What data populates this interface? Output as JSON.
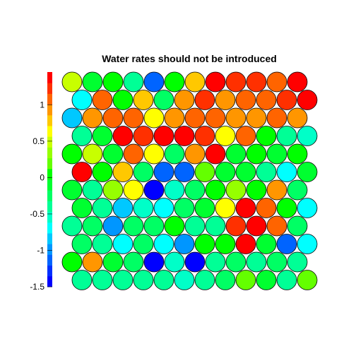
{
  "chart_data": {
    "type": "heatmap",
    "layout": "hexagonal-circles",
    "title": "Water rates should not be introduced",
    "colorbar": {
      "ticks": [
        1,
        0.5,
        0,
        -0.5,
        -1,
        -1.5
      ],
      "tick_labels": [
        "1",
        "0.5",
        "0",
        "-0.5",
        "-1",
        "-1.5"
      ],
      "range": [
        -1.5,
        1.45
      ],
      "levels": 20,
      "palette": [
        "#0000ff",
        "#0030ff",
        "#0064ff",
        "#0096ff",
        "#00c8ff",
        "#00ffff",
        "#00ffc8",
        "#00ff96",
        "#00ff64",
        "#00ff30",
        "#00ff00",
        "#64ff00",
        "#96ff00",
        "#c8ff00",
        "#ffff00",
        "#ffc800",
        "#ff9600",
        "#ff6400",
        "#ff3000",
        "#ff0000"
      ]
    },
    "grid": {
      "columns": 12,
      "rows_top_to_bottom": [
        [
          0.45,
          -0.05,
          0.0,
          -0.45,
          -1.1,
          0.05,
          0.75,
          1.35,
          1.3,
          1.2,
          1.05,
          1.35
        ],
        [
          -0.75,
          1.05,
          0.1,
          0.75,
          -0.25,
          0.95,
          1.25,
          1.0,
          1.1,
          1.05,
          1.2,
          1.35
        ],
        [
          -0.8,
          0.95,
          1.05,
          1.05,
          0.65,
          1.0,
          1.05,
          1.15,
          0.95,
          0.9,
          1.15,
          0.9
        ],
        [
          -0.45,
          -0.05,
          1.35,
          1.25,
          1.35,
          1.35,
          1.3,
          0.65,
          1.15,
          0.0,
          -0.45,
          -0.6
        ],
        [
          0.0,
          0.45,
          -0.15,
          1.05,
          0.65,
          -0.2,
          1.0,
          1.35,
          -0.05,
          0.05,
          -0.1,
          0.05
        ],
        [
          1.35,
          0.05,
          0.85,
          -0.2,
          -1.1,
          -1.2,
          0.15,
          -0.15,
          -0.05,
          -0.35,
          -0.75,
          -0.05
        ],
        [
          -0.15,
          -0.45,
          0.35,
          0.6,
          -1.4,
          -0.5,
          -0.2,
          0.0,
          0.35,
          0.05,
          0.95,
          -0.2
        ],
        [
          -0.15,
          -0.45,
          -0.85,
          -0.55,
          -0.75,
          -0.25,
          -0.05,
          0.65,
          1.35,
          1.1,
          0.05,
          -0.75
        ],
        [
          -0.4,
          -0.25,
          -1.05,
          -0.2,
          -0.25,
          0.05,
          -0.45,
          -0.35,
          1.3,
          1.35,
          1.05,
          -0.25
        ],
        [
          -0.25,
          -0.45,
          -0.75,
          -0.25,
          -0.65,
          -0.95,
          0.05,
          0.1,
          1.35,
          -0.15,
          -1.15,
          -0.7
        ],
        [
          0.05,
          0.95,
          -0.05,
          -0.3,
          -1.4,
          -0.55,
          -1.4,
          -0.4,
          -0.25,
          -0.35,
          -0.2,
          -0.45
        ],
        [
          -0.35,
          -0.45,
          -0.35,
          -0.45,
          -0.45,
          -0.5,
          -0.35,
          -0.25,
          0.25,
          -0.05,
          -0.35,
          0.15
        ]
      ]
    }
  }
}
